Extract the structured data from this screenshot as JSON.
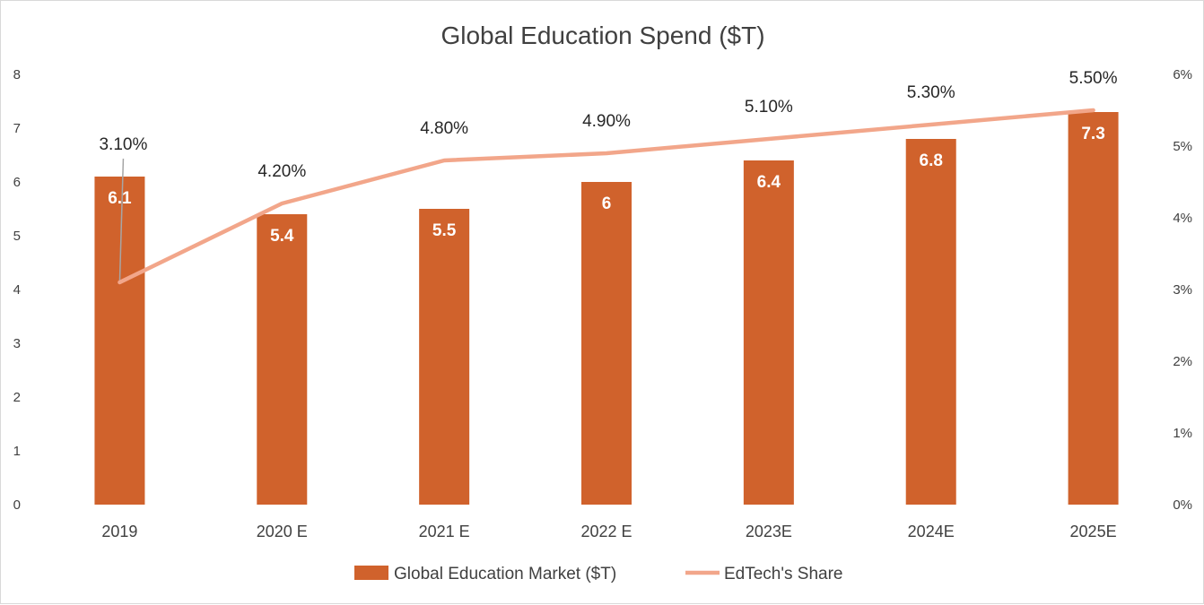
{
  "chart_data": {
    "type": "bar",
    "title": "Global Education Spend ($T)",
    "categories": [
      "2019",
      "2020 E",
      "2021 E",
      "2022 E",
      "2023E",
      "2024E",
      "2025E"
    ],
    "series": [
      {
        "name": "Global Education Market ($T)",
        "type": "bar",
        "axis": "left",
        "color": "#d0622c",
        "values": [
          6.1,
          5.4,
          5.5,
          6,
          6.4,
          6.8,
          7.3
        ],
        "data_labels": [
          "6.1",
          "5.4",
          "5.5",
          "6",
          "6.4",
          "6.8",
          "7.3"
        ]
      },
      {
        "name": "EdTech's Share",
        "type": "line",
        "axis": "right",
        "color": "#f2a68a",
        "values": [
          3.1,
          4.2,
          4.8,
          4.9,
          5.1,
          5.3,
          5.5
        ],
        "data_labels": [
          "3.10%",
          "4.20%",
          "4.80%",
          "4.90%",
          "5.10%",
          "5.30%",
          "5.50%"
        ]
      }
    ],
    "y_left": {
      "range": [
        0,
        8
      ],
      "ticks": [
        "0",
        "1",
        "2",
        "3",
        "4",
        "5",
        "6",
        "7",
        "8"
      ]
    },
    "y_right": {
      "range": [
        0,
        6
      ],
      "ticks": [
        "0%",
        "1%",
        "2%",
        "3%",
        "4%",
        "5%",
        "6%"
      ]
    },
    "grid": false,
    "legend_position": "bottom"
  }
}
